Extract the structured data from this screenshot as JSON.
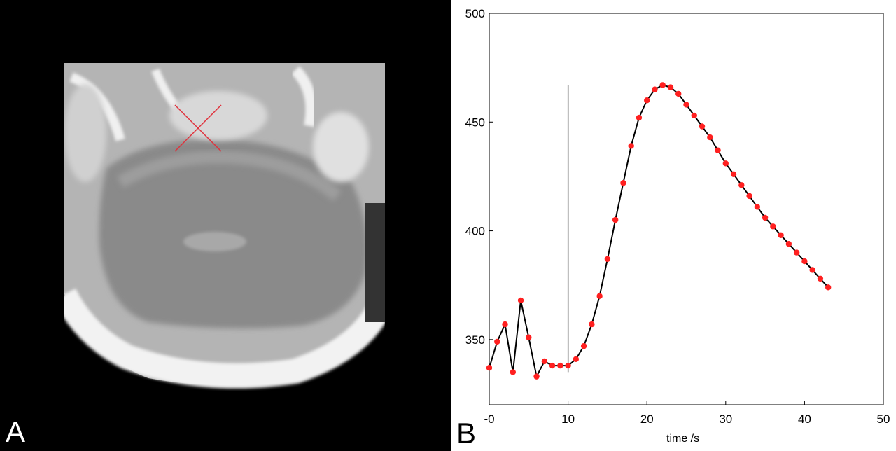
{
  "panels": {
    "a_label": "A",
    "b_label": "B"
  },
  "chart_data": {
    "type": "line",
    "title": "",
    "xlabel": "time /s",
    "ylabel": "",
    "xlim": [
      0,
      50
    ],
    "ylim": [
      320,
      500
    ],
    "xticks": [
      {
        "value": 0,
        "label": "-0"
      },
      {
        "value": 10,
        "label": "10"
      },
      {
        "value": 20,
        "label": "20"
      },
      {
        "value": 30,
        "label": "30"
      },
      {
        "value": 40,
        "label": "40"
      },
      {
        "value": 50,
        "label": "50"
      }
    ],
    "yticks": [
      {
        "value": 350,
        "label": "350"
      },
      {
        "value": 400,
        "label": "400"
      },
      {
        "value": 450,
        "label": "450"
      },
      {
        "value": 500,
        "label": "500"
      }
    ],
    "grid": false,
    "series": [
      {
        "line_color": "#000000",
        "marker_color": "#ff2020",
        "x": [
          0,
          1,
          2,
          3,
          4,
          5,
          6,
          7,
          8,
          9,
          10,
          11,
          12,
          13,
          14,
          15,
          16,
          17,
          18,
          19,
          20,
          21,
          22,
          23,
          24,
          25,
          26,
          27,
          28,
          29,
          30,
          31,
          32,
          33,
          34,
          35,
          36,
          37,
          38,
          39,
          40,
          41,
          42,
          43
        ],
        "y": [
          337,
          349,
          357,
          335,
          368,
          351,
          333,
          340,
          338,
          338,
          338,
          341,
          347,
          357,
          370,
          387,
          405,
          422,
          439,
          452,
          460,
          465,
          467,
          466,
          463,
          458,
          453,
          448,
          443,
          437,
          431,
          426,
          421,
          416,
          411,
          406,
          402,
          398,
          394,
          390,
          386,
          382,
          378,
          374
        ]
      }
    ],
    "annotations": [
      {
        "type": "vline",
        "x": 10,
        "y_from": 335,
        "y_to": 467,
        "color": "#000000"
      }
    ]
  }
}
